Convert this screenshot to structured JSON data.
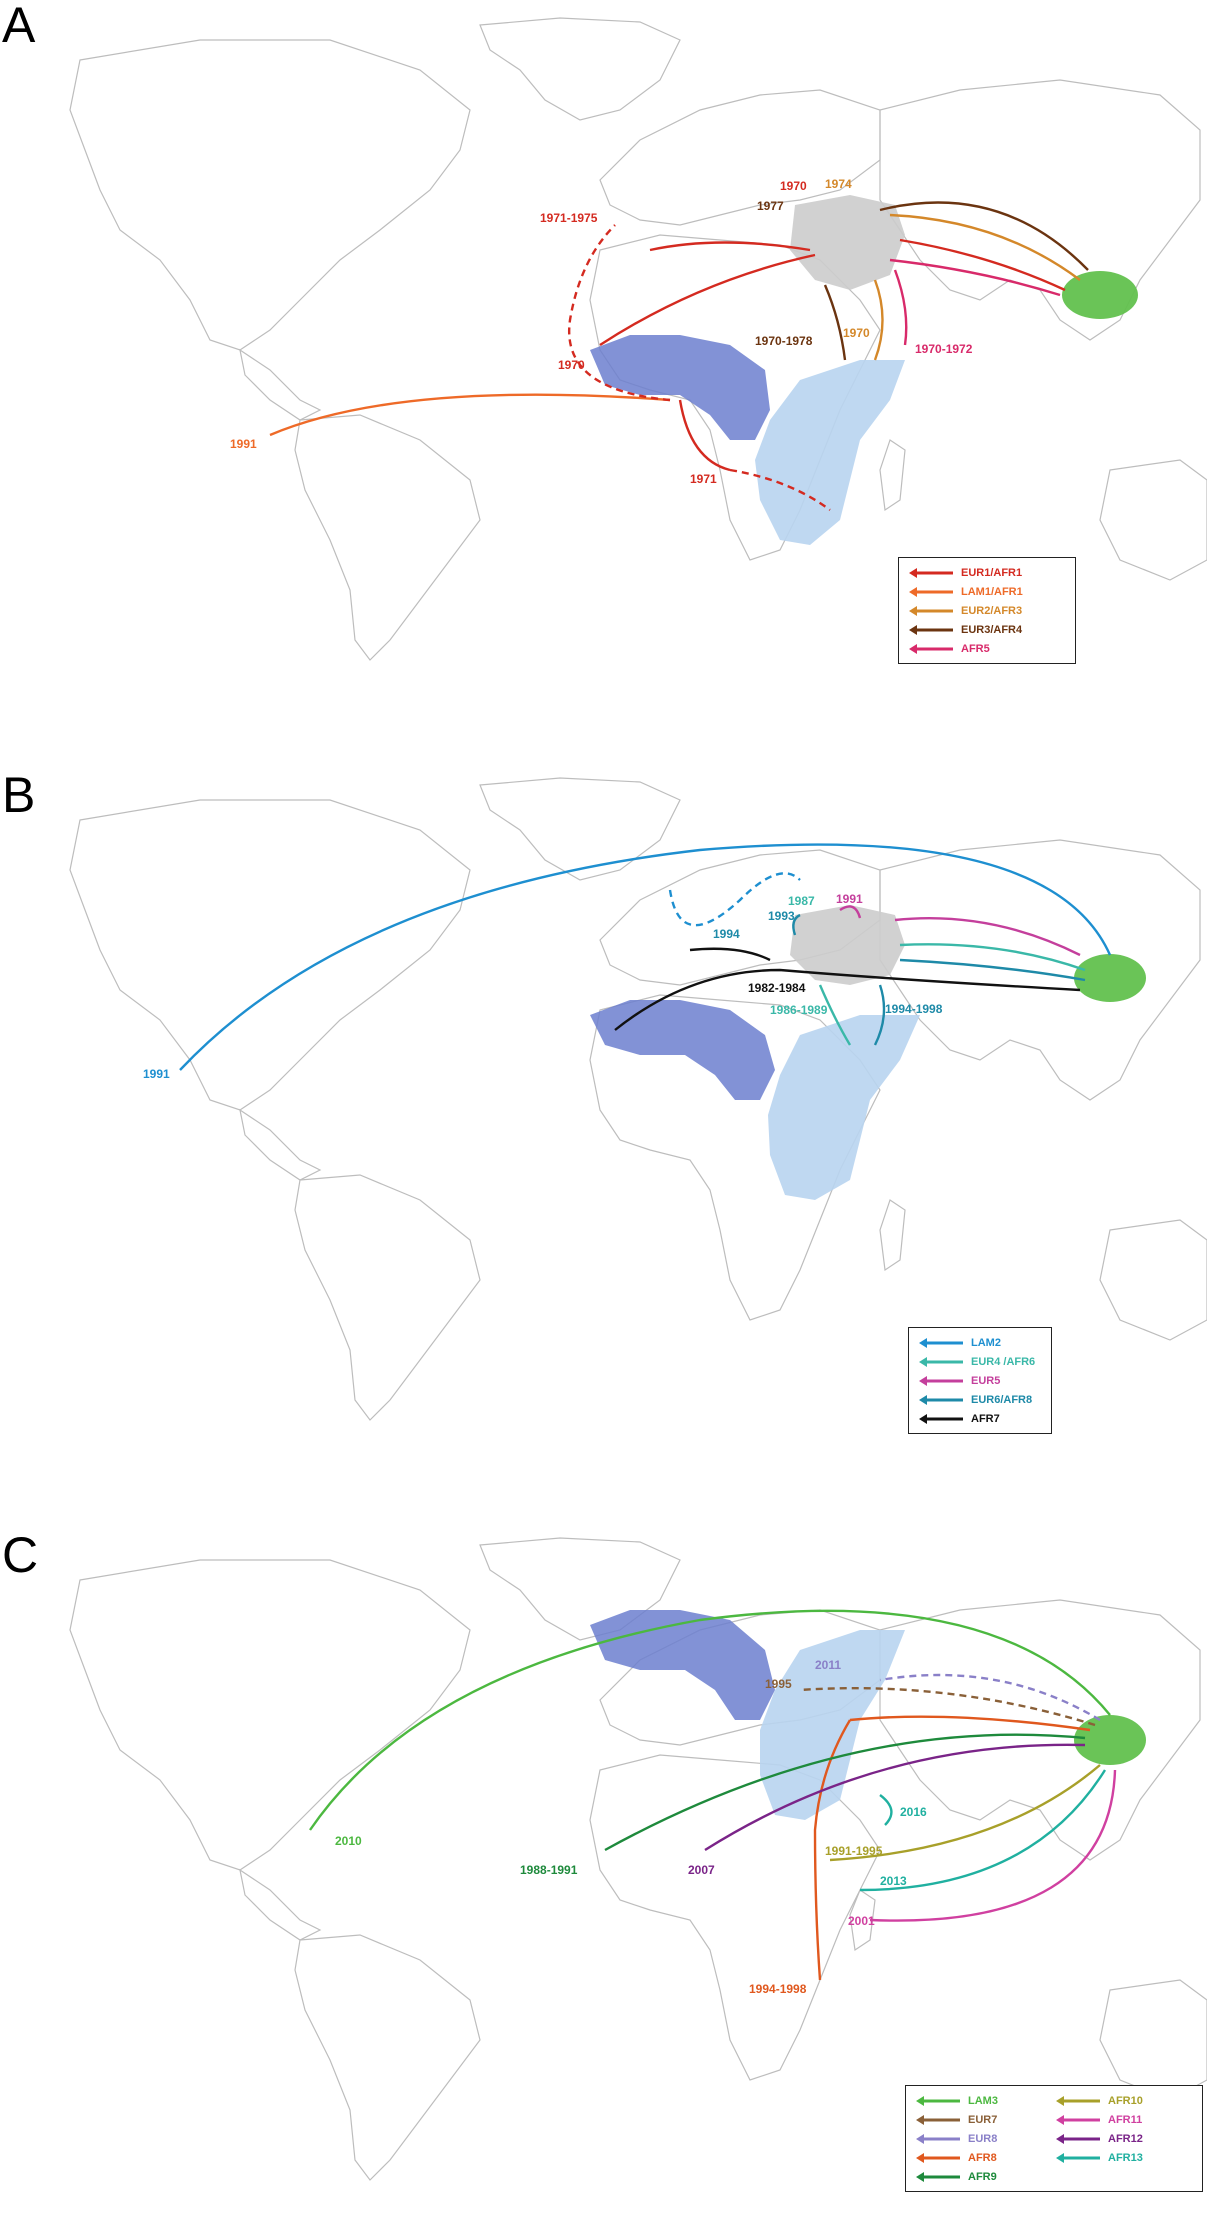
{
  "panels": [
    {
      "letter": "A",
      "legend": [
        {
          "label": "EUR1/AFR1",
          "color": "#d42a20"
        },
        {
          "label": "LAM1/AFR1",
          "color": "#ee6a28"
        },
        {
          "label": "EUR2/AFR3",
          "color": "#d4882a"
        },
        {
          "label": "EUR3/AFR4",
          "color": "#6b3410"
        },
        {
          "label": "AFR5",
          "color": "#d82a6a"
        }
      ],
      "year_labels": [
        "1970",
        "1974",
        "1977",
        "1971-1975",
        "1970-1978",
        "1970",
        "1970-1972",
        "1970",
        "1991",
        "1971"
      ]
    },
    {
      "letter": "B",
      "legend": [
        {
          "label": "LAM2",
          "color": "#1e8fd0"
        },
        {
          "label": "EUR4 /AFR6",
          "color": "#3ab8a8"
        },
        {
          "label": "EUR5",
          "color": "#c43f9c"
        },
        {
          "label": "EUR6/AFR8",
          "color": "#1e8aa8"
        },
        {
          "label": "AFR7",
          "color": "#111111"
        }
      ],
      "year_labels": [
        "1991",
        "1987",
        "1993",
        "1994",
        "1982-1984",
        "1986-1989",
        "1994-1998",
        "1991"
      ]
    },
    {
      "letter": "C",
      "legend": [
        {
          "label": "LAM3",
          "color": "#4cb840"
        },
        {
          "label": "EUR7",
          "color": "#8a6038"
        },
        {
          "label": "EUR8",
          "color": "#8a80c8"
        },
        {
          "label": "AFR8",
          "color": "#e0581e"
        },
        {
          "label": "AFR9",
          "color": "#1e8a3c"
        },
        {
          "label": "AFR10",
          "color": "#a8a02a"
        },
        {
          "label": "AFR11",
          "color": "#d040a0"
        },
        {
          "label": "AFR12",
          "color": "#7a2488"
        },
        {
          "label": "AFR13",
          "color": "#20b0a0"
        }
      ],
      "year_labels": [
        "2011",
        "1995",
        "2010",
        "1988-1991",
        "2007",
        "2016",
        "1991-1995",
        "2013",
        "2001",
        "1994-1998"
      ]
    }
  ],
  "region_colors": {
    "europe_middle_east": "#cccccc",
    "south_asia": "#62c14e",
    "west_africa": "#6c7fcf",
    "east_africa": "#b8d4f0"
  }
}
